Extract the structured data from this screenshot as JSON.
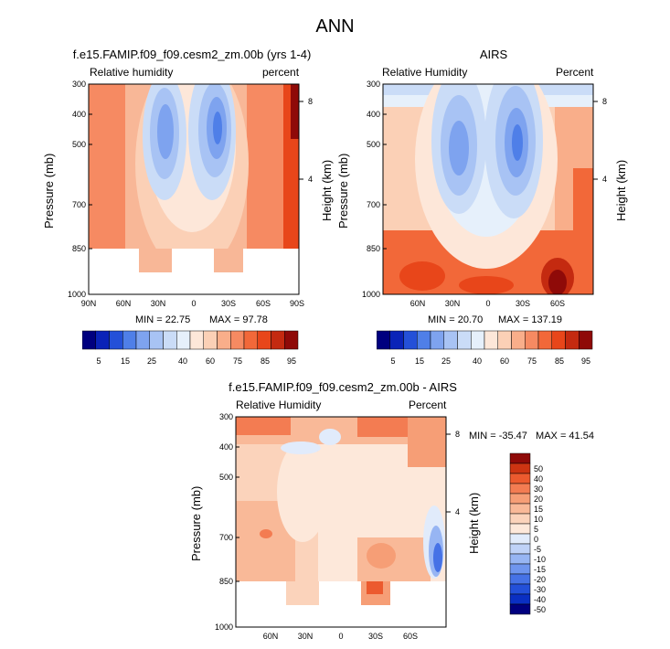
{
  "main_title": "ANN",
  "colors": {
    "relhum_cmap": [
      "#00007f",
      "#0a23b8",
      "#2450d8",
      "#4f7fe8",
      "#7ea3ef",
      "#a8c3f4",
      "#cadcf7",
      "#e6f0fb",
      "#fde7d9",
      "#fbd0b6",
      "#f9ae8a",
      "#f68a62",
      "#f26839",
      "#e8461a",
      "#c42a10",
      "#8f0a08"
    ],
    "diff_cmap": [
      "#00007f",
      "#0a2fc2",
      "#2350d9",
      "#4672e6",
      "#6f95ee",
      "#97b5f3",
      "#bfd2f7",
      "#e1ebfb",
      "#fde8da",
      "#fbd3bb",
      "#f9b998",
      "#f69e76",
      "#f37c52",
      "#ec5a2e",
      "#cd3412",
      "#8f0a08"
    ]
  },
  "chart_data": [
    {
      "id": "model",
      "type": "heatmap",
      "title": "f.e15.FAMIP.f09_f09.cesm2_zm.00b (yrs 1-4)",
      "variable_label": "Relative humidity",
      "units_label": "percent",
      "ylabel": "Pressure (mb)",
      "y2label": "Height (km)",
      "x_ticks": [
        "90N",
        "60N",
        "30N",
        "0",
        "30S",
        "60S",
        "90S"
      ],
      "x_range": [
        90,
        -90
      ],
      "y_ticks": [
        "300",
        "400",
        "500",
        "700",
        "850",
        "1000"
      ],
      "y_range_mb": [
        300,
        1000
      ],
      "height_ticks": [
        "8",
        "4"
      ],
      "min": 22.75,
      "max": 97.78,
      "min_label": "MIN = 22.75",
      "max_label": "MAX = 97.78",
      "colorbar_labels": [
        "5",
        "15",
        "25",
        "40",
        "60",
        "75",
        "85",
        "95"
      ]
    },
    {
      "id": "obs",
      "type": "heatmap",
      "title": "AIRS",
      "variable_label": "Relative Humidity",
      "units_label": "Percent",
      "ylabel": "Pressure (mb)",
      "y2label": "Height (km)",
      "x_ticks": [
        "60N",
        "30N",
        "0",
        "30S",
        "60S"
      ],
      "x_range": [
        90,
        -90
      ],
      "y_ticks": [
        "300",
        "400",
        "500",
        "700",
        "850",
        "1000"
      ],
      "y_range_mb": [
        300,
        1000
      ],
      "height_ticks": [
        "8",
        "4"
      ],
      "min": 20.7,
      "max": 137.19,
      "min_label": "MIN = 20.70",
      "max_label": "MAX = 137.19",
      "colorbar_labels": [
        "5",
        "15",
        "25",
        "40",
        "60",
        "75",
        "85",
        "95"
      ]
    },
    {
      "id": "diff",
      "type": "heatmap",
      "title": "f.e15.FAMIP.f09_f09.cesm2_zm.00b - AIRS",
      "variable_label": "Relative Humidity",
      "units_label": "Percent",
      "ylabel": "Pressure (mb)",
      "y2label": "Height (km)",
      "x_ticks": [
        "60N",
        "30N",
        "0",
        "30S",
        "60S"
      ],
      "x_range": [
        90,
        -90
      ],
      "y_ticks": [
        "300",
        "400",
        "500",
        "700",
        "850",
        "1000"
      ],
      "y_range_mb": [
        300,
        1000
      ],
      "height_ticks": [
        "8",
        "4"
      ],
      "min": -35.47,
      "max": 41.54,
      "stats_label": "MIN = -35.47   MAX = 41.54",
      "colorbar_labels": [
        "50",
        "40",
        "30",
        "20",
        "15",
        "10",
        "5",
        "0",
        "-5",
        "-10",
        "-15",
        "-20",
        "-30",
        "-40",
        "-50"
      ]
    }
  ]
}
